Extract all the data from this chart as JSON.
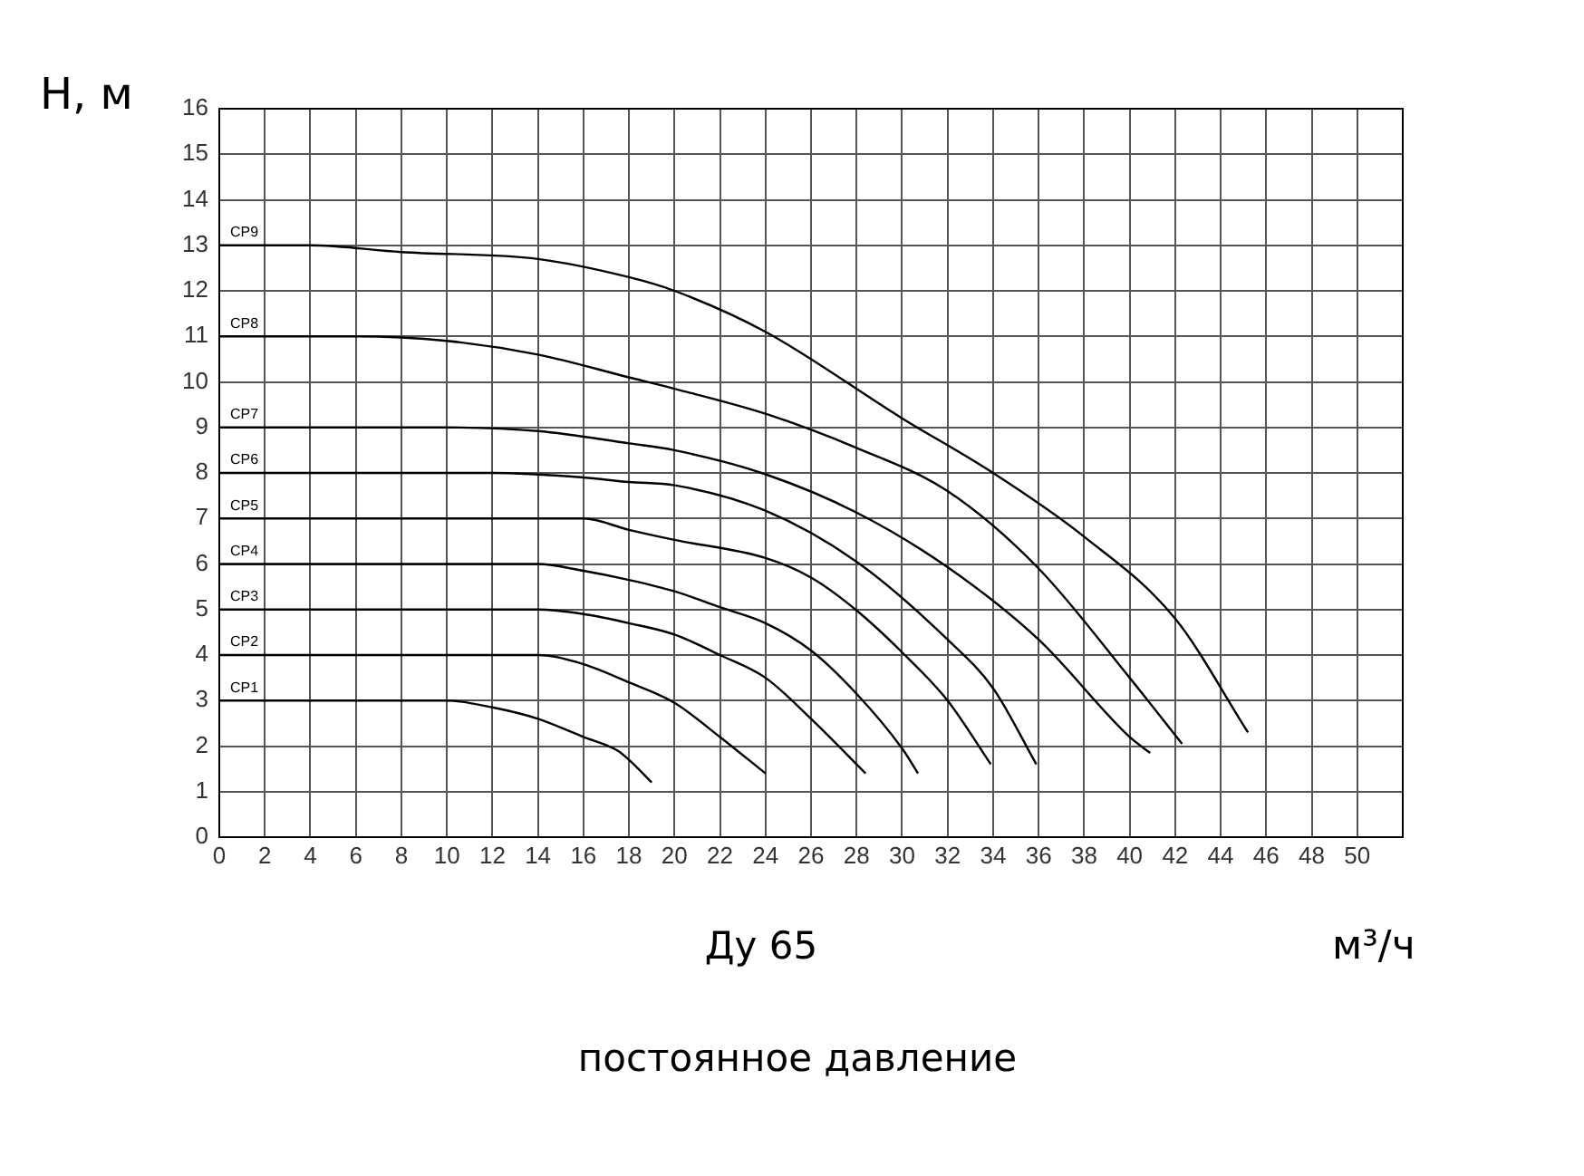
{
  "chart_data": {
    "type": "line",
    "title": "Ду 65",
    "xlabel": "м³/ч",
    "ylabel": "H, м",
    "annotations": [
      "постоянное давление"
    ],
    "xlim": [
      0,
      52
    ],
    "xticks": [
      0,
      2,
      4,
      6,
      8,
      10,
      12,
      14,
      16,
      18,
      20,
      22,
      24,
      26,
      28,
      30,
      32,
      34,
      36,
      38,
      40,
      42,
      44,
      46,
      48,
      50
    ],
    "ylim": [
      0,
      16
    ],
    "yticks": [
      0,
      1,
      2,
      3,
      4,
      5,
      6,
      7,
      8,
      9,
      10,
      11,
      12,
      13,
      14,
      15,
      16
    ],
    "grid": true,
    "legend": false,
    "marker": "none",
    "line_style": "solid",
    "series": [
      {
        "name": "CP1",
        "color": "#000000",
        "x": [
          0,
          10,
          12,
          14,
          16,
          17.5,
          18,
          19
        ],
        "values": [
          3,
          3,
          2.85,
          2.6,
          2.2,
          1.9,
          1.7,
          1.2
        ]
      },
      {
        "name": "CP2",
        "color": "#000000",
        "x": [
          0,
          14,
          16,
          18,
          20,
          22,
          24
        ],
        "values": [
          4,
          4,
          3.8,
          3.4,
          2.95,
          2.2,
          1.4
        ]
      },
      {
        "name": "CP3",
        "color": "#000000",
        "x": [
          0,
          14,
          16,
          18,
          20,
          22,
          24,
          26,
          28.4
        ],
        "values": [
          5,
          5,
          4.9,
          4.7,
          4.45,
          4,
          3.5,
          2.6,
          1.4
        ]
      },
      {
        "name": "CP4",
        "color": "#000000",
        "x": [
          0,
          14,
          16,
          18,
          20,
          22,
          24,
          26,
          28,
          30,
          30.7
        ],
        "values": [
          6,
          6,
          5.85,
          5.65,
          5.4,
          5.05,
          4.7,
          4.1,
          3.15,
          1.95,
          1.4
        ]
      },
      {
        "name": "CP5",
        "color": "#000000",
        "x": [
          0,
          16,
          18,
          20,
          24,
          26,
          28,
          30,
          32,
          33.9
        ],
        "values": [
          7,
          7,
          6.75,
          6.53,
          6.13,
          5.7,
          4.98,
          4.06,
          3,
          1.6
        ]
      },
      {
        "name": "CP6",
        "color": "#000000",
        "x": [
          0,
          12,
          16,
          18,
          20,
          24,
          28,
          32,
          34,
          35.9
        ],
        "values": [
          8,
          8,
          7.9,
          7.8,
          7.73,
          7.17,
          6.05,
          4.34,
          3.27,
          1.6
        ]
      },
      {
        "name": "CP7",
        "color": "#000000",
        "x": [
          0,
          10,
          14,
          18,
          20,
          24,
          28,
          32,
          36,
          40,
          40.9
        ],
        "values": [
          9,
          9,
          8.92,
          8.65,
          8.5,
          7.97,
          7.13,
          5.93,
          4.34,
          2.2,
          1.85
        ]
      },
      {
        "name": "CP8",
        "color": "#000000",
        "x": [
          0,
          6,
          10,
          14,
          18,
          20,
          24,
          28,
          32,
          36,
          40,
          42.3
        ],
        "values": [
          11,
          11,
          10.9,
          10.6,
          10.1,
          9.85,
          9.3,
          8.55,
          7.6,
          5.9,
          3.5,
          2.05
        ]
      },
      {
        "name": "CP9",
        "color": "#000000",
        "x": [
          0,
          4,
          8,
          14,
          18,
          20,
          24,
          30,
          34,
          38,
          42,
          45.2
        ],
        "values": [
          13,
          13,
          12.85,
          12.7,
          12.3,
          12,
          11.1,
          9.2,
          8,
          6.6,
          4.8,
          2.3
        ]
      }
    ]
  }
}
